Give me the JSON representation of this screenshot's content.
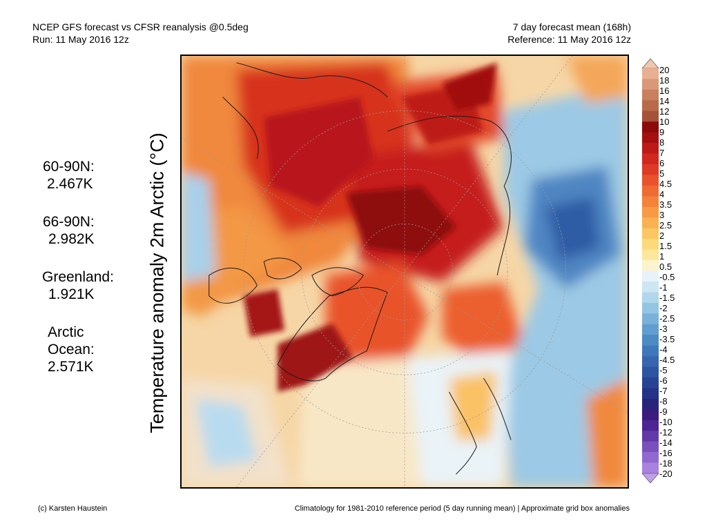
{
  "header": {
    "title_line1": "NCEP GFS forecast vs CFSR reanalysis @0.5deg",
    "title_line2": "Run: 11 May 2016 12z",
    "right_line1": "7 day forecast mean (168h)",
    "right_line2": "Reference: 11 May 2016 12z"
  },
  "stats": [
    {
      "label": "60-90N:",
      "value": "2.467K"
    },
    {
      "label": "66-90N:",
      "value": "2.982K"
    },
    {
      "label": "Greenland:",
      "value": "1.921K"
    },
    {
      "label": "Arctic",
      "label2": "Ocean:",
      "value": "2.571K"
    }
  ],
  "axis_label": "Temperature anomaly 2m Arctic (°C)",
  "colorbar": {
    "labels": [
      "20",
      "18",
      "16",
      "14",
      "12",
      "10",
      "9",
      "8",
      "7",
      "6",
      "5",
      "4.5",
      "4",
      "3.5",
      "3",
      "2.5",
      "2",
      "1.5",
      "1",
      "0.5",
      "-0.5",
      "-1",
      "-1.5",
      "-2",
      "-2.5",
      "-3",
      "-3.5",
      "-4",
      "-4.5",
      "-5",
      "-6",
      "-7",
      "-8",
      "-9",
      "-10",
      "-12",
      "-14",
      "-16",
      "-18",
      "-20"
    ],
    "colors": [
      "#f1c6ad",
      "#e7b092",
      "#d99877",
      "#c9805f",
      "#b86a4a",
      "#a55336",
      "#8b0a0a",
      "#a40f10",
      "#bd1a17",
      "#d1271e",
      "#df3a25",
      "#ea522c",
      "#f06a33",
      "#f4823b",
      "#f79a46",
      "#f9b152",
      "#fbc763",
      "#fcd97a",
      "#fde79a",
      "#fdf3cf",
      "#e7f2fa",
      "#cde6f3",
      "#b1d7ec",
      "#94c5e3",
      "#79b1d9",
      "#619ecf",
      "#4d8bc5",
      "#3f78ba",
      "#3566ae",
      "#2d55a1",
      "#274493",
      "#243386",
      "#2a237a",
      "#3a1b7e",
      "#4f2594",
      "#6338a9",
      "#7a50bd",
      "#9168cf",
      "#a882dd",
      "#c0a0ea"
    ]
  },
  "footer": {
    "left": "(c) Karsten Haustein",
    "right": "Climatology for 1981-2010 reference period (5 day running mean) | Approximate grid box anomalies"
  }
}
